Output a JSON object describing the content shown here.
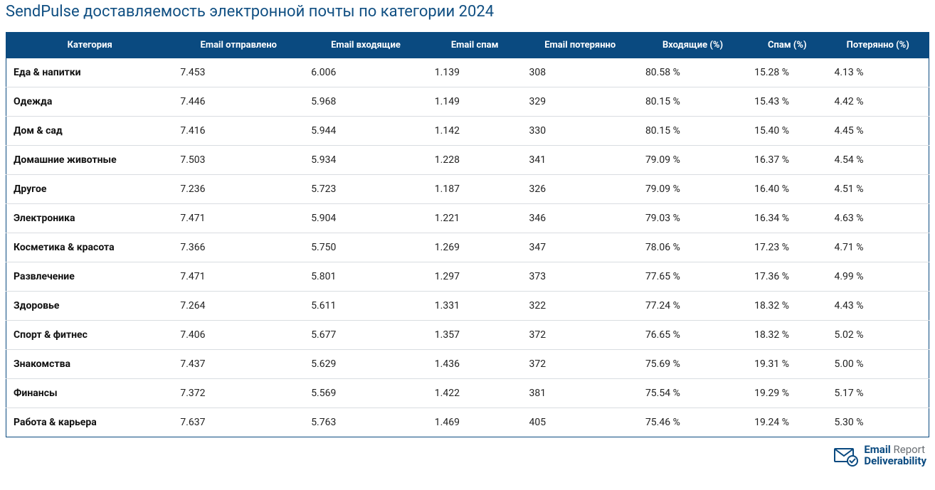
{
  "title": "SendPulse доставляемость электронной почты по категории 2024",
  "table": {
    "columns": [
      "Категория",
      "Email отправлено",
      "Email входящие",
      "Email спам",
      "Email потерянно",
      "Входящие (%)",
      "Спам (%)",
      "Потерянно (%)"
    ],
    "rows": [
      [
        "Еда & напитки",
        "7.453",
        "6.006",
        "1.139",
        "308",
        "80.58 %",
        "15.28 %",
        "4.13 %"
      ],
      [
        "Одежда",
        "7.446",
        "5.968",
        "1.149",
        "329",
        "80.15 %",
        "15.43 %",
        "4.42 %"
      ],
      [
        "Дом & сад",
        "7.416",
        "5.944",
        "1.142",
        "330",
        "80.15 %",
        "15.40 %",
        "4.45 %"
      ],
      [
        "Домашние животные",
        "7.503",
        "5.934",
        "1.228",
        "341",
        "79.09 %",
        "16.37 %",
        "4.54 %"
      ],
      [
        "Другое",
        "7.236",
        "5.723",
        "1.187",
        "326",
        "79.09 %",
        "16.40 %",
        "4.51 %"
      ],
      [
        "Электроника",
        "7.471",
        "5.904",
        "1.221",
        "346",
        "79.03 %",
        "16.34 %",
        "4.63 %"
      ],
      [
        "Косметика & красота",
        "7.366",
        "5.750",
        "1.269",
        "347",
        "78.06 %",
        "17.23 %",
        "4.71 %"
      ],
      [
        "Развлечение",
        "7.471",
        "5.801",
        "1.297",
        "373",
        "77.65 %",
        "17.36 %",
        "4.99 %"
      ],
      [
        "Здоровье",
        "7.264",
        "5.611",
        "1.331",
        "322",
        "77.24 %",
        "18.32 %",
        "4.43 %"
      ],
      [
        "Спорт & фитнес",
        "7.406",
        "5.677",
        "1.357",
        "372",
        "76.65 %",
        "18.32 %",
        "5.02 %"
      ],
      [
        "Знакомства",
        "7.437",
        "5.629",
        "1.436",
        "372",
        "75.69 %",
        "19.31 %",
        "5.00 %"
      ],
      [
        "Финансы",
        "7.372",
        "5.569",
        "1.422",
        "381",
        "75.54 %",
        "19.29 %",
        "5.17 %"
      ],
      [
        "Работа & карьера",
        "7.637",
        "5.763",
        "1.469",
        "405",
        "75.46 %",
        "19.24 %",
        "5.30 %"
      ]
    ],
    "header_bg": "#0a4a80",
    "header_fg": "#ffffff",
    "row_border": "#d9dde1",
    "font_size_header": 13,
    "font_size_cell": 14
  },
  "footer": {
    "brand_blue": "Email",
    "brand_grey": "Report",
    "brand_line2": "Deliverability",
    "icon_color": "#0a4a80"
  },
  "colors": {
    "title": "#104f82",
    "brand_blue": "#0a4a80",
    "brand_grey": "#6a6f74",
    "background": "#ffffff"
  }
}
